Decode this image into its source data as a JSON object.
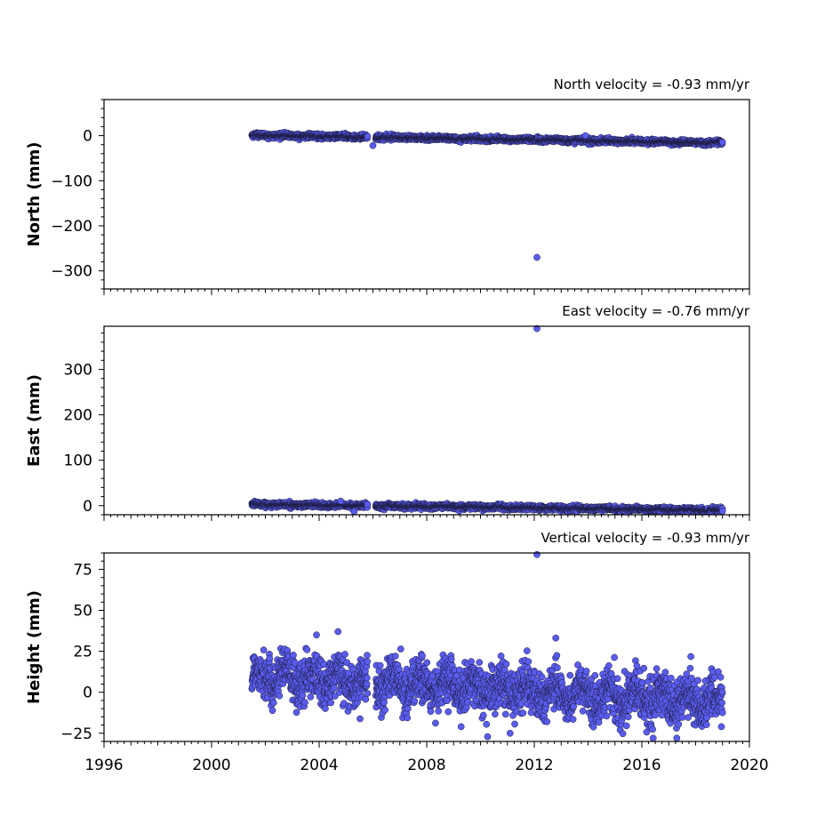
{
  "chart_data": [
    {
      "type": "scatter",
      "title": "North velocity = -0.93 mm/yr",
      "ylabel": "North (mm)",
      "xlim": [
        1996,
        2020
      ],
      "ylim": [
        -340,
        80
      ],
      "yticks": [
        0,
        -100,
        -200,
        -300
      ],
      "ytick_labels": [
        "0",
        "−100",
        "−200",
        "−300"
      ],
      "velocity_mm_yr": -0.93,
      "data_range": [
        2001.5,
        2019.0
      ],
      "trend": [
        1.0,
        -16.0
      ],
      "noise": 2.5,
      "gap": [
        2005.8,
        2006.1
      ],
      "outliers": [
        [
          2006.0,
          -22
        ],
        [
          2012.1,
          -270
        ],
        [
          2013.9,
          0
        ]
      ]
    },
    {
      "type": "scatter",
      "title": "East velocity = -0.76 mm/yr",
      "ylabel": "East (mm)",
      "xlim": [
        1996,
        2020
      ],
      "ylim": [
        -20,
        395
      ],
      "yticks": [
        0,
        100,
        200,
        300
      ],
      "ytick_labels": [
        "0",
        "100",
        "200",
        "300"
      ],
      "velocity_mm_yr": -0.76,
      "data_range": [
        2001.5,
        2019.0
      ],
      "trend": [
        3.0,
        -10.0
      ],
      "noise": 2.5,
      "gap": [
        2005.8,
        2006.1
      ],
      "outliers": [
        [
          2012.1,
          390
        ],
        [
          2005.3,
          -13
        ],
        [
          2004.8,
          10
        ]
      ]
    },
    {
      "type": "scatter",
      "title": "Vertical velocity = -0.93 mm/yr",
      "ylabel": "Height (mm)",
      "xlim": [
        1996,
        2020
      ],
      "ylim": [
        -30,
        85
      ],
      "yticks": [
        75,
        50,
        25,
        0,
        -25
      ],
      "ytick_labels": [
        "75",
        "50",
        "25",
        "0",
        "−25"
      ],
      "velocity_mm_yr": -0.93,
      "data_range": [
        2001.5,
        2019.0
      ],
      "trend": [
        10.0,
        -6.0
      ],
      "noise": 7.0,
      "gap": [
        2005.8,
        2006.1
      ],
      "outliers": [
        [
          2012.1,
          84
        ],
        [
          2004.7,
          37
        ],
        [
          2003.9,
          35
        ],
        [
          2017.3,
          -28
        ],
        [
          2011.1,
          -25
        ]
      ]
    }
  ],
  "x_axis": {
    "ticks": [
      1996,
      2000,
      2004,
      2008,
      2012,
      2016,
      2020
    ],
    "tick_labels": [
      "1996",
      "2000",
      "2004",
      "2008",
      "2012",
      "2016",
      "2020"
    ]
  },
  "colors": {
    "marker_fill": "#5a5cf0",
    "marker_edge": "#1a1a3a"
  }
}
